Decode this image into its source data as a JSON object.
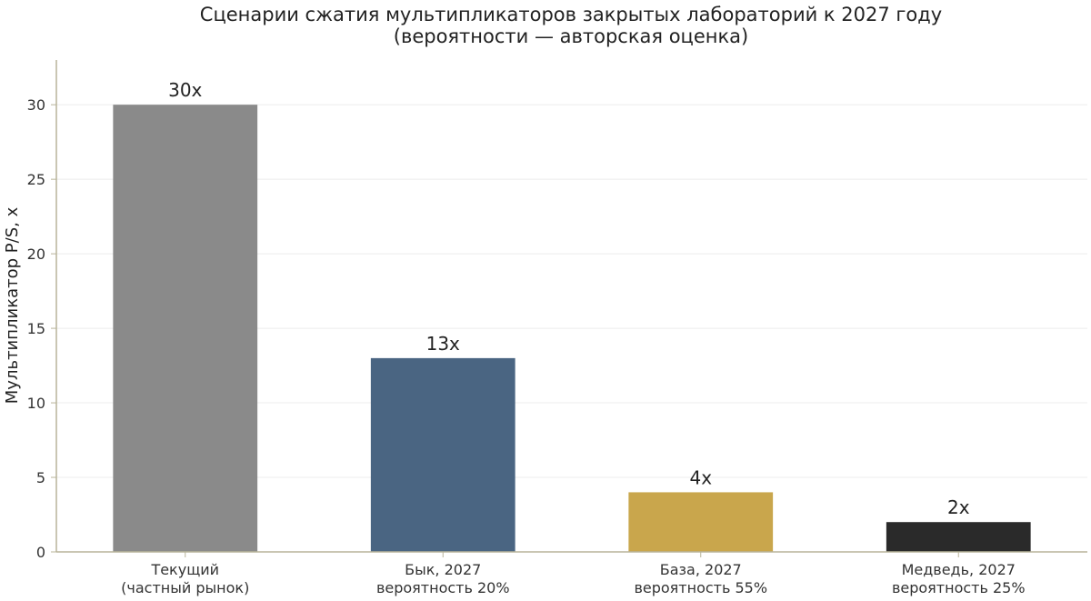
{
  "chart_data": {
    "type": "bar",
    "title": "Сценарии сжатия мультипликаторов закрытых лабораторий к 2027 году",
    "subtitle": "(вероятности — авторская оценка)",
    "xlabel": "",
    "ylabel": "Мультипликатор P/S, x",
    "ylim": [
      0,
      33
    ],
    "yticks": [
      0,
      5,
      10,
      15,
      20,
      25,
      30
    ],
    "grid": true,
    "categories": [
      [
        "Текущий",
        "(частный рынок)"
      ],
      [
        "Бык, 2027",
        "вероятность 20%"
      ],
      [
        "База, 2027",
        "вероятность 55%"
      ],
      [
        "Медведь, 2027",
        "вероятность 25%"
      ]
    ],
    "values": [
      30,
      13,
      4,
      2
    ],
    "data_labels": [
      "30x",
      "13x",
      "4x",
      "2x"
    ],
    "colors": [
      "#8a8a8a",
      "#4a6582",
      "#c9a64c",
      "#2a2a2a"
    ]
  },
  "style": {
    "axis_color": "#b8b49a",
    "grid_color": "#ececec"
  }
}
